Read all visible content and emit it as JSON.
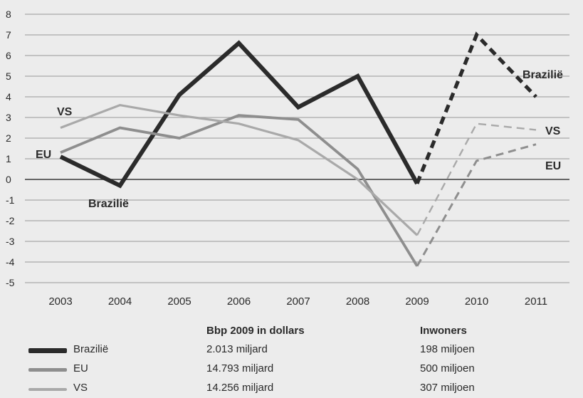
{
  "chart_data": {
    "type": "line",
    "x": [
      "2003",
      "2004",
      "2005",
      "2006",
      "2007",
      "2008",
      "2009",
      "2010",
      "2011"
    ],
    "ylim": [
      -5,
      8
    ],
    "yticks": [
      "8",
      "7",
      "6",
      "5",
      "4",
      "3",
      "2",
      "1",
      "0",
      "-1",
      "-2",
      "-3",
      "-4",
      "-5"
    ],
    "grid": true,
    "solid_until": "2009",
    "dashed_from": "2009",
    "series": [
      {
        "name": "Brazilië",
        "values": [
          1.1,
          -0.3,
          4.1,
          6.6,
          3.5,
          5.0,
          -0.2,
          7.0,
          4.0
        ],
        "color": "#2b2b2b"
      },
      {
        "name": "EU",
        "values": [
          1.3,
          2.5,
          2.0,
          3.1,
          2.9,
          0.5,
          -4.2,
          0.9,
          1.7
        ],
        "color": "#8e8e8e"
      },
      {
        "name": "VS",
        "values": [
          2.5,
          3.6,
          3.1,
          2.7,
          1.9,
          0.0,
          -2.7,
          2.7,
          2.4
        ],
        "color": "#a9a9a9"
      }
    ],
    "annotations": [
      {
        "text": "VS"
      },
      {
        "text": "EU"
      },
      {
        "text": "Brazilië"
      },
      {
        "text": "Brazilië"
      },
      {
        "text": "VS"
      },
      {
        "text": "EU"
      }
    ]
  },
  "legend": {
    "header_bbp": "Bbp 2009 in dollars",
    "header_inwoners": "Inwoners",
    "rows": [
      {
        "name": "Brazilië",
        "bbp": "2.013 miljard",
        "inwoners": "198 miljoen"
      },
      {
        "name": "EU",
        "bbp": "14.793 miljard",
        "inwoners": "500 miljoen"
      },
      {
        "name": "VS",
        "bbp": "14.256 miljard",
        "inwoners": "307 miljoen"
      }
    ]
  }
}
